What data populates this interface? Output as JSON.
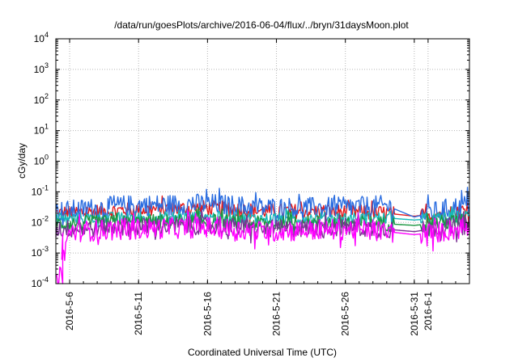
{
  "chart_data": {
    "type": "line",
    "title": "/data/run/goesPlots/archive/2016-06-04/flux/../bryn/31daysMoon.plot",
    "xlabel": "Coordinated Universal Time (UTC)",
    "ylabel": "cGy/day",
    "yscale": "log",
    "ylim": [
      0.0001,
      10000
    ],
    "ytick_values": [
      0.0001,
      0.001,
      0.01,
      0.1,
      1,
      10,
      100,
      1000,
      10000
    ],
    "ytick_labels": [
      {
        "base": "10",
        "exp": "-4"
      },
      {
        "base": "10",
        "exp": "-3"
      },
      {
        "base": "10",
        "exp": "-2"
      },
      {
        "base": "10",
        "exp": "-1"
      },
      {
        "base": "10",
        "exp": "0"
      },
      {
        "base": "10",
        "exp": "1"
      },
      {
        "base": "10",
        "exp": "2"
      },
      {
        "base": "10",
        "exp": "3"
      },
      {
        "base": "10",
        "exp": "4"
      }
    ],
    "xlim": [
      "2016-05-05",
      "2016-06-04"
    ],
    "xtick_values": [
      "2016-05-06",
      "2016-05-11",
      "2016-05-16",
      "2016-05-21",
      "2016-05-26",
      "2016-05-31",
      "2016-06-01"
    ],
    "xtick_labels": [
      "2016-5-6",
      "2016-5-11",
      "2016-5-16",
      "2016-5-21",
      "2016-5-26",
      "2016-5-31",
      "2016-6-1"
    ],
    "grid": true,
    "series": [
      {
        "color": "#e41a1c",
        "baseline": 0.022,
        "spread": 0.25,
        "x": [
          "2016-05-05",
          "2016-05-10",
          "2016-05-16",
          "2016-05-20",
          "2016-05-26",
          "2016-05-29",
          "2016-05-31",
          "2016-06-02",
          "2016-06-04"
        ],
        "y": [
          0.02,
          0.025,
          0.03,
          0.024,
          0.022,
          0.02,
          0.016,
          0.02,
          0.028
        ]
      },
      {
        "color": "#2b6de0",
        "baseline": 0.02,
        "spread": 0.35,
        "x": [
          "2016-05-05",
          "2016-05-10",
          "2016-05-16",
          "2016-05-20",
          "2016-05-26",
          "2016-05-29",
          "2016-05-31",
          "2016-06-02",
          "2016-06-04"
        ],
        "y": [
          0.022,
          0.035,
          0.04,
          0.03,
          0.03,
          0.035,
          0.015,
          0.025,
          0.04
        ]
      },
      {
        "color": "#17b8b8",
        "baseline": 0.013,
        "spread": 0.2,
        "x": [
          "2016-05-05",
          "2016-05-10",
          "2016-05-16",
          "2016-05-20",
          "2016-05-26",
          "2016-05-29",
          "2016-05-31",
          "2016-06-02",
          "2016-06-04"
        ],
        "y": [
          0.013,
          0.014,
          0.015,
          0.013,
          0.014,
          0.014,
          0.012,
          0.014,
          0.016
        ]
      },
      {
        "color": "#1a9641",
        "baseline": 0.009,
        "spread": 0.25,
        "x": [
          "2016-05-05",
          "2016-05-10",
          "2016-05-16",
          "2016-05-20",
          "2016-05-26",
          "2016-05-29",
          "2016-05-31",
          "2016-06-02",
          "2016-06-04"
        ],
        "y": [
          0.009,
          0.01,
          0.011,
          0.009,
          0.01,
          0.009,
          0.008,
          0.01,
          0.011
        ]
      },
      {
        "color": "#7b3294",
        "baseline": 0.006,
        "spread": 0.3,
        "x": [
          "2016-05-05",
          "2016-05-10",
          "2016-05-16",
          "2016-05-20",
          "2016-05-26",
          "2016-05-29",
          "2016-05-31",
          "2016-06-02",
          "2016-06-04"
        ],
        "y": [
          0.006,
          0.007,
          0.008,
          0.006,
          0.007,
          0.006,
          0.005,
          0.007,
          0.008
        ]
      },
      {
        "color": "#ff00ff",
        "baseline": 0.0045,
        "spread": 0.35,
        "x": [
          "2016-05-05",
          "2016-05-05",
          "2016-05-06",
          "2016-05-10",
          "2016-05-16",
          "2016-05-20",
          "2016-05-26",
          "2016-05-29",
          "2016-05-31",
          "2016-06-02",
          "2016-06-04"
        ],
        "y": [
          0.005,
          0.0001,
          0.005,
          0.006,
          0.007,
          0.005,
          0.006,
          0.005,
          0.004,
          0.005,
          0.007
        ]
      }
    ]
  }
}
